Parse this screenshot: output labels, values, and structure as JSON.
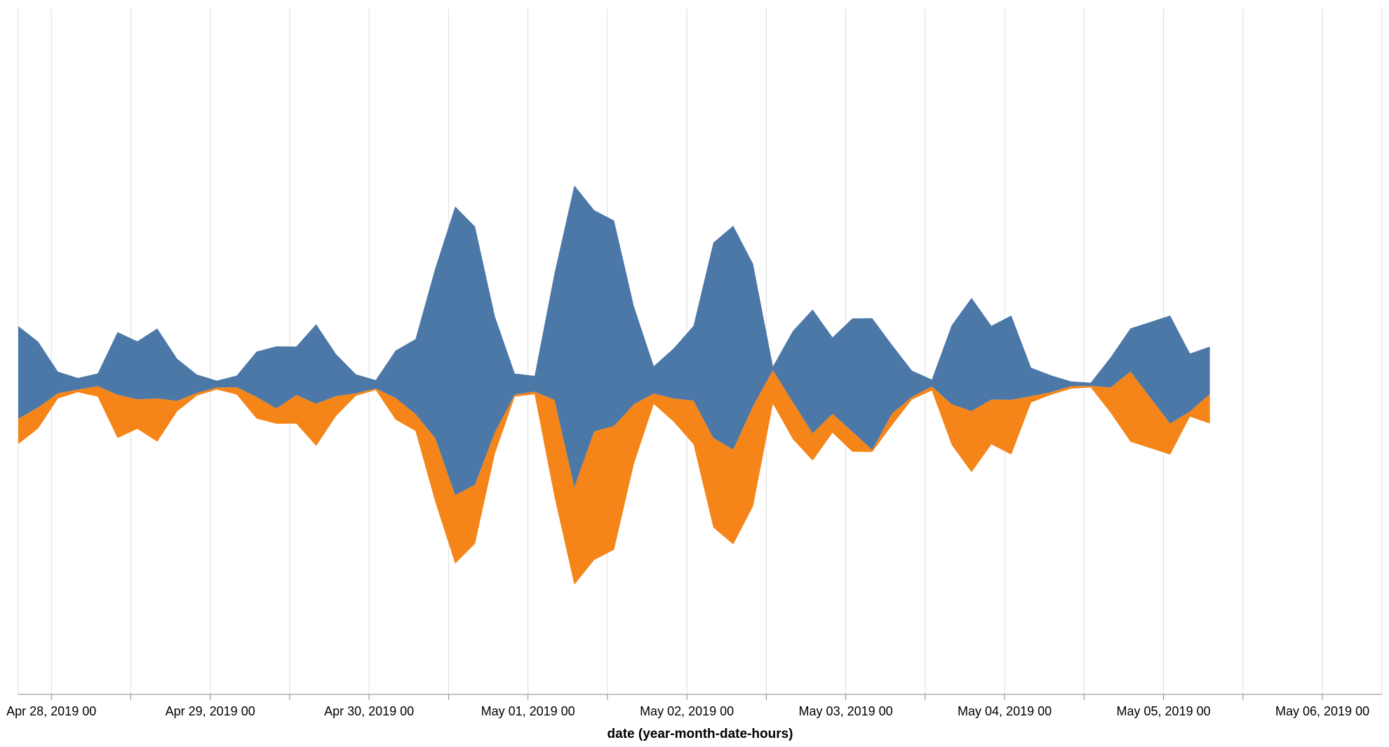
{
  "chart_data": {
    "type": "area",
    "stack": "center",
    "xlabel": "date (year-month-date-hours)",
    "ylabel": "",
    "grid": true,
    "legend": "none",
    "colors": {
      "series_a": "#4c78a8",
      "series_b": "#f58518",
      "grid": "#dddddd",
      "axis": "#888888"
    },
    "tick_labels": [
      "Apr 28, 2019 00",
      "Apr 29, 2019 00",
      "Apr 30, 2019 00",
      "May 01, 2019 00",
      "May 02, 2019 00",
      "May 03, 2019 00",
      "May 04, 2019 00",
      "May 05, 2019 00",
      "May 06, 2019 00"
    ],
    "x_start": "2019-04-27T19:00:00",
    "x_end": "2019-05-06T09:00:00",
    "series": [
      {
        "values": [
          [
            "2019-04-27T19:00",
            176
          ],
          [
            "2019-04-27T22:00",
            125
          ],
          [
            "2019-04-28T01:00",
            41
          ],
          [
            "2019-04-28T04:00",
            22
          ],
          [
            "2019-04-28T07:00",
            24
          ],
          [
            "2019-04-28T10:00",
            119
          ],
          [
            "2019-04-28T13:00",
            110
          ],
          [
            "2019-04-28T16:00",
            133
          ],
          [
            "2019-04-28T19:00",
            80
          ],
          [
            "2019-04-28T22:00",
            35
          ],
          [
            "2019-04-29T01:00",
            13
          ],
          [
            "2019-04-29T04:00",
            22
          ],
          [
            "2019-04-29T07:00",
            86
          ],
          [
            "2019-04-29T10:00",
            118
          ],
          [
            "2019-04-29T13:00",
            92
          ],
          [
            "2019-04-29T16:00",
            151
          ],
          [
            "2019-04-29T19:00",
            80
          ],
          [
            "2019-04-29T22:00",
            36
          ],
          [
            "2019-04-30T01:00",
            16
          ],
          [
            "2019-04-30T04:00",
            90
          ],
          [
            "2019-04-30T07:00",
            142
          ],
          [
            "2019-04-30T10:00",
            323
          ],
          [
            "2019-04-30T13:00",
            548
          ],
          [
            "2019-04-30T16:00",
            490
          ],
          [
            "2019-04-30T19:00",
            220
          ],
          [
            "2019-04-30T22:00",
            40
          ],
          [
            "2019-05-01T01:00",
            30
          ],
          [
            "2019-05-01T04:00",
            240
          ],
          [
            "2019-05-01T07:00",
            573
          ],
          [
            "2019-05-01T10:00",
            420
          ],
          [
            "2019-05-01T13:00",
            390
          ],
          [
            "2019-05-01T16:00",
            186
          ],
          [
            "2019-05-01T19:00",
            52
          ],
          [
            "2019-05-01T22:00",
            95
          ],
          [
            "2019-05-02T01:00",
            142
          ],
          [
            "2019-05-02T04:00",
            371
          ],
          [
            "2019-05-02T07:00",
            425
          ],
          [
            "2019-05-02T10:00",
            270
          ],
          [
            "2019-05-02T13:00",
            7
          ],
          [
            "2019-05-02T16:00",
            135
          ],
          [
            "2019-05-02T19:00",
            235
          ],
          [
            "2019-05-02T22:00",
            145
          ],
          [
            "2019-05-03T01:00",
            215
          ],
          [
            "2019-05-03T04:00",
            250
          ],
          [
            "2019-05-03T07:00",
            130
          ],
          [
            "2019-05-03T10:00",
            50
          ],
          [
            "2019-05-03T13:00",
            13
          ],
          [
            "2019-05-03T16:00",
            150
          ],
          [
            "2019-05-03T19:00",
            215
          ],
          [
            "2019-05-03T22:00",
            140
          ],
          [
            "2019-05-04T01:00",
            160
          ],
          [
            "2019-05-04T04:00",
            54
          ],
          [
            "2019-05-04T07:00",
            32
          ],
          [
            "2019-05-04T10:00",
            9
          ],
          [
            "2019-05-04T13:00",
            6
          ],
          [
            "2019-05-04T16:00",
            57
          ],
          [
            "2019-05-04T19:00",
            82
          ],
          [
            "2019-05-05T01:00",
            205
          ],
          [
            "2019-05-05T04:00",
            110
          ],
          [
            "2019-05-05T07:00",
            90
          ]
        ]
      },
      {
        "values": [
          [
            "2019-04-27T19:00",
            48
          ],
          [
            "2019-04-27T22:00",
            40
          ],
          [
            "2019-04-28T01:00",
            10
          ],
          [
            "2019-04-28T04:00",
            5
          ],
          [
            "2019-04-28T07:00",
            20
          ],
          [
            "2019-04-28T10:00",
            82
          ],
          [
            "2019-04-28T13:00",
            56
          ],
          [
            "2019-04-28T16:00",
            82
          ],
          [
            "2019-04-28T19:00",
            20
          ],
          [
            "2019-04-28T22:00",
            5
          ],
          [
            "2019-04-29T01:00",
            4
          ],
          [
            "2019-04-29T04:00",
            14
          ],
          [
            "2019-04-29T07:00",
            41
          ],
          [
            "2019-04-29T10:00",
            29
          ],
          [
            "2019-04-29T13:00",
            54
          ],
          [
            "2019-04-29T16:00",
            80
          ],
          [
            "2019-04-29T19:00",
            38
          ],
          [
            "2019-04-29T22:00",
            5
          ],
          [
            "2019-04-30T01:00",
            3
          ],
          [
            "2019-04-30T04:00",
            41
          ],
          [
            "2019-04-30T07:00",
            32
          ],
          [
            "2019-04-30T10:00",
            121
          ],
          [
            "2019-04-30T13:00",
            130
          ],
          [
            "2019-04-30T16:00",
            112
          ],
          [
            "2019-04-30T19:00",
            41
          ],
          [
            "2019-04-30T22:00",
            4
          ],
          [
            "2019-05-01T01:00",
            5
          ],
          [
            "2019-05-01T04:00",
            184
          ],
          [
            "2019-05-01T07:00",
            185
          ],
          [
            "2019-05-01T10:00",
            244
          ],
          [
            "2019-05-01T13:00",
            235
          ],
          [
            "2019-05-01T16:00",
            113
          ],
          [
            "2019-05-01T19:00",
            20
          ],
          [
            "2019-05-01T22:00",
            44
          ],
          [
            "2019-05-02T01:00",
            83
          ],
          [
            "2019-05-02T04:00",
            170
          ],
          [
            "2019-05-02T07:00",
            180
          ],
          [
            "2019-05-02T10:00",
            190
          ],
          [
            "2019-05-02T13:00",
            64
          ],
          [
            "2019-05-02T16:00",
            70
          ],
          [
            "2019-05-02T19:00",
            52
          ],
          [
            "2019-05-02T22:00",
            36
          ],
          [
            "2019-05-03T01:00",
            38
          ],
          [
            "2019-05-03T04:00",
            4
          ],
          [
            "2019-05-03T07:00",
            22
          ],
          [
            "2019-05-03T10:00",
            5
          ],
          [
            "2019-05-03T13:00",
            8
          ],
          [
            "2019-05-03T16:00",
            77
          ],
          [
            "2019-05-03T19:00",
            116
          ],
          [
            "2019-05-03T22:00",
            85
          ],
          [
            "2019-05-04T01:00",
            104
          ],
          [
            "2019-05-04T04:00",
            12
          ],
          [
            "2019-05-04T07:00",
            5
          ],
          [
            "2019-05-04T10:00",
            5
          ],
          [
            "2019-05-04T13:00",
            3
          ],
          [
            "2019-05-04T16:00",
            48
          ],
          [
            "2019-05-04T19:00",
            133
          ],
          [
            "2019-05-05T01:00",
            59
          ],
          [
            "2019-05-05T04:00",
            10
          ],
          [
            "2019-05-05T07:00",
            56
          ]
        ]
      }
    ]
  }
}
